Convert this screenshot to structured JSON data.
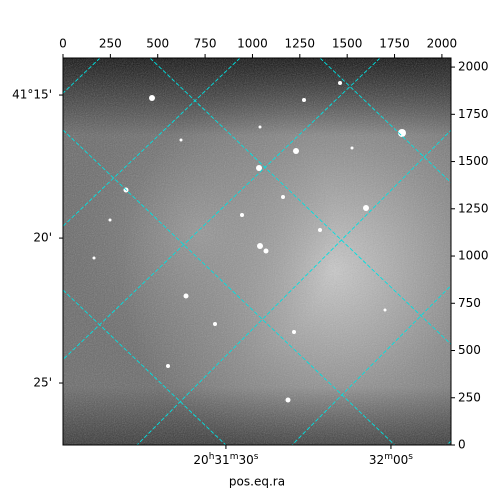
{
  "chart_data": {
    "type": "image",
    "xlabel": "pos.eq.ra",
    "xlim": [
      0,
      2048
    ],
    "ylim": [
      0,
      2048
    ],
    "xticks": [
      0,
      250,
      500,
      750,
      1000,
      1250,
      1500,
      1750,
      2000
    ],
    "yticks": [
      0,
      250,
      500,
      750,
      1000,
      1250,
      1500,
      1750,
      2000
    ],
    "ra_ticks": [
      {
        "value": 860,
        "label": "20h31m30s"
      },
      {
        "value": 1731,
        "label": "32m00s"
      }
    ],
    "dec_ticks": [
      {
        "value": 1852,
        "label": "41°15'"
      },
      {
        "value": 1095,
        "label": "20'"
      },
      {
        "value": 328,
        "label": "25'"
      }
    ]
  }
}
